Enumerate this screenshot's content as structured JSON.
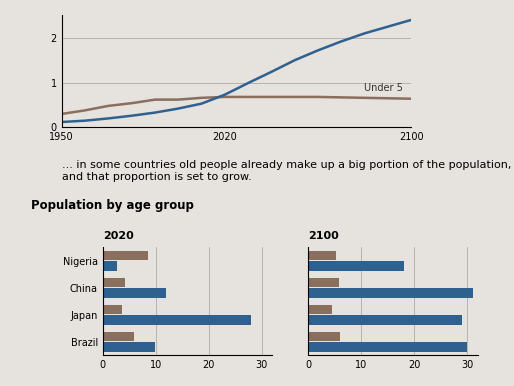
{
  "caption": "... in some countries old people already make up a big portion of the population, and that proportion is set to grow.",
  "heading": "Population by age group",
  "chart_data": [
    {
      "type": "line",
      "x": [
        1950,
        1960,
        1970,
        1980,
        1990,
        2000,
        2010,
        2020,
        2030,
        2040,
        2050,
        2060,
        2070,
        2080,
        2090,
        2100
      ],
      "xlim": [
        1950,
        2100
      ],
      "xticks": [
        1950,
        2020,
        2100
      ],
      "ylim": [
        0,
        2.5
      ],
      "yticks": [
        0,
        1,
        2
      ],
      "grid": true,
      "series": [
        {
          "name": "Under 5",
          "color": "#8a6e5e",
          "values": [
            0.3,
            0.38,
            0.48,
            0.54,
            0.62,
            0.62,
            0.66,
            0.68,
            0.68,
            0.68,
            0.68,
            0.68,
            0.67,
            0.66,
            0.65,
            0.64
          ]
        },
        {
          "color": "#2f6190",
          "values": [
            0.12,
            0.15,
            0.2,
            0.26,
            0.33,
            0.42,
            0.53,
            0.73,
            0.99,
            1.24,
            1.5,
            1.72,
            1.92,
            2.1,
            2.25,
            2.4
          ]
        }
      ]
    },
    {
      "type": "bar",
      "orientation": "horizontal",
      "title": "2020",
      "categories": [
        "Nigeria",
        "China",
        "Japan",
        "Brazil"
      ],
      "xlim": [
        0,
        32
      ],
      "xticks": [
        0,
        10,
        20,
        30
      ],
      "grid": true,
      "series": [
        {
          "color": "#8a6e5e",
          "values": [
            8.5,
            4.2,
            3.7,
            5.8
          ]
        },
        {
          "color": "#2f6190",
          "values": [
            2.7,
            12,
            28,
            9.8
          ]
        }
      ]
    },
    {
      "type": "bar",
      "orientation": "horizontal",
      "title": "2100",
      "categories": [
        "Nigeria",
        "China",
        "Japan",
        "Brazil"
      ],
      "xlim": [
        0,
        32
      ],
      "xticks": [
        0,
        10,
        20,
        30
      ],
      "grid": true,
      "tick_labels": "x",
      "series": [
        {
          "color": "#8a6e5e",
          "values": [
            5.2,
            5.8,
            4.5,
            6
          ]
        },
        {
          "color": "#2f6190",
          "values": [
            18,
            31,
            29,
            30
          ]
        }
      ]
    }
  ]
}
